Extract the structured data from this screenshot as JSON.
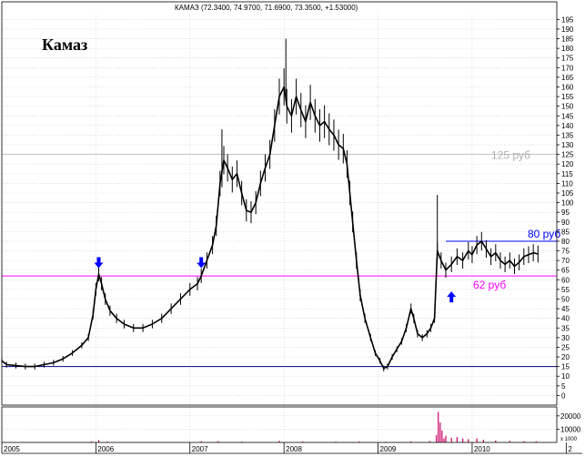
{
  "chart_data": {
    "type": "line",
    "title": "КАМАЗ (72.3400, 74.9700, 71.6900, 73.3500, +1.53000)",
    "label": "Камаз",
    "x_ticks": [
      "2005",
      "2006",
      "2007",
      "2008",
      "2009",
      "2010",
      "2"
    ],
    "y_ticks": [
      0,
      5,
      10,
      15,
      20,
      25,
      30,
      35,
      40,
      45,
      50,
      55,
      60,
      65,
      70,
      75,
      80,
      85,
      90,
      95,
      100,
      105,
      110,
      115,
      120,
      125,
      130,
      135,
      140,
      145,
      150,
      155,
      160,
      165,
      170,
      175,
      180,
      185,
      190,
      195
    ],
    "ylim": [
      -5,
      198
    ],
    "xlim": [
      2005.0,
      2010.9
    ],
    "volume_ticks": [
      "20000",
      "10000",
      "x 1000"
    ],
    "volume_ylim": [
      0,
      24000
    ],
    "grid": true,
    "colors": {
      "price": "#000000",
      "support_level": "#ff00ff",
      "resistance_level": "#0000ff",
      "level_125": "#b0b0b0",
      "baseline": "#000080",
      "arrow": "#0000ff",
      "volume": "#cc0066"
    },
    "horizontal_lines": [
      {
        "y": 125,
        "label": "125 руб",
        "color": "#b0b0b0"
      },
      {
        "y": 62,
        "label": "62 руб",
        "color": "#ff00ff"
      },
      {
        "y": 80,
        "label": "80 руб",
        "color": "#0000ff",
        "x_start": 2009.72
      },
      {
        "y": 15,
        "label": "",
        "color": "#000080"
      }
    ],
    "arrows": [
      {
        "x": 2006.03,
        "y": 67,
        "direction": "down"
      },
      {
        "x": 2007.12,
        "y": 67,
        "direction": "down"
      },
      {
        "x": 2009.78,
        "y": 53,
        "direction": "up"
      }
    ],
    "price_series": [
      [
        2005.0,
        18
      ],
      [
        2005.05,
        16
      ],
      [
        2005.15,
        15.5
      ],
      [
        2005.25,
        15
      ],
      [
        2005.35,
        15
      ],
      [
        2005.45,
        16
      ],
      [
        2005.55,
        17
      ],
      [
        2005.65,
        19
      ],
      [
        2005.75,
        22
      ],
      [
        2005.85,
        26
      ],
      [
        2005.92,
        30
      ],
      [
        2005.97,
        42
      ],
      [
        2006.0,
        55
      ],
      [
        2006.03,
        63
      ],
      [
        2006.06,
        58
      ],
      [
        2006.1,
        50
      ],
      [
        2006.15,
        44
      ],
      [
        2006.22,
        40
      ],
      [
        2006.3,
        37
      ],
      [
        2006.4,
        35
      ],
      [
        2006.5,
        35
      ],
      [
        2006.6,
        37
      ],
      [
        2006.7,
        40
      ],
      [
        2006.8,
        45
      ],
      [
        2006.9,
        50
      ],
      [
        2007.0,
        55
      ],
      [
        2007.08,
        58
      ],
      [
        2007.12,
        62
      ],
      [
        2007.18,
        70
      ],
      [
        2007.24,
        78
      ],
      [
        2007.28,
        88
      ],
      [
        2007.32,
        110
      ],
      [
        2007.36,
        122
      ],
      [
        2007.4,
        118
      ],
      [
        2007.45,
        112
      ],
      [
        2007.5,
        115
      ],
      [
        2007.55,
        105
      ],
      [
        2007.6,
        96
      ],
      [
        2007.65,
        95
      ],
      [
        2007.7,
        100
      ],
      [
        2007.75,
        110
      ],
      [
        2007.8,
        118
      ],
      [
        2007.85,
        125
      ],
      [
        2007.9,
        140
      ],
      [
        2007.95,
        155
      ],
      [
        2008.0,
        160
      ],
      [
        2008.03,
        150
      ],
      [
        2008.08,
        145
      ],
      [
        2008.13,
        155
      ],
      [
        2008.18,
        148
      ],
      [
        2008.23,
        142
      ],
      [
        2008.28,
        152
      ],
      [
        2008.33,
        145
      ],
      [
        2008.38,
        140
      ],
      [
        2008.43,
        142
      ],
      [
        2008.48,
        138
      ],
      [
        2008.53,
        135
      ],
      [
        2008.58,
        130
      ],
      [
        2008.63,
        128
      ],
      [
        2008.67,
        120
      ],
      [
        2008.7,
        105
      ],
      [
        2008.73,
        90
      ],
      [
        2008.77,
        70
      ],
      [
        2008.81,
        52
      ],
      [
        2008.86,
        40
      ],
      [
        2008.92,
        30
      ],
      [
        2008.97,
        22
      ],
      [
        2009.02,
        18
      ],
      [
        2009.06,
        14
      ],
      [
        2009.1,
        15
      ],
      [
        2009.15,
        20
      ],
      [
        2009.2,
        24
      ],
      [
        2009.25,
        28
      ],
      [
        2009.3,
        35
      ],
      [
        2009.35,
        45
      ],
      [
        2009.38,
        40
      ],
      [
        2009.42,
        32
      ],
      [
        2009.47,
        30
      ],
      [
        2009.52,
        32
      ],
      [
        2009.56,
        35
      ],
      [
        2009.6,
        40
      ],
      [
        2009.63,
        75
      ],
      [
        2009.67,
        70
      ],
      [
        2009.72,
        65
      ],
      [
        2009.78,
        68
      ],
      [
        2009.84,
        72
      ],
      [
        2009.9,
        70
      ],
      [
        2009.96,
        75
      ],
      [
        2010.0,
        73
      ],
      [
        2010.05,
        78
      ],
      [
        2010.1,
        80
      ],
      [
        2010.15,
        76
      ],
      [
        2010.2,
        72
      ],
      [
        2010.25,
        74
      ],
      [
        2010.3,
        70
      ],
      [
        2010.35,
        68
      ],
      [
        2010.4,
        70
      ],
      [
        2010.45,
        67
      ],
      [
        2010.5,
        69
      ],
      [
        2010.55,
        72
      ],
      [
        2010.6,
        73
      ],
      [
        2010.65,
        74
      ],
      [
        2010.7,
        73.35
      ]
    ],
    "volume_series": [
      [
        2005.95,
        800
      ],
      [
        2006.03,
        1800
      ],
      [
        2006.12,
        600
      ],
      [
        2007.12,
        900
      ],
      [
        2007.3,
        1000
      ],
      [
        2007.55,
        600
      ],
      [
        2007.95,
        1200
      ],
      [
        2008.2,
        700
      ],
      [
        2008.55,
        600
      ],
      [
        2008.8,
        700
      ],
      [
        2009.08,
        600
      ],
      [
        2009.35,
        800
      ],
      [
        2009.55,
        1000
      ],
      [
        2009.62,
        5500
      ],
      [
        2009.64,
        23000
      ],
      [
        2009.66,
        15000
      ],
      [
        2009.68,
        9000
      ],
      [
        2009.7,
        3000
      ],
      [
        2009.72,
        5000
      ],
      [
        2009.78,
        3500
      ],
      [
        2009.84,
        4000
      ],
      [
        2009.9,
        3000
      ],
      [
        2009.96,
        2500
      ],
      [
        2010.05,
        3000
      ],
      [
        2010.12,
        2000
      ],
      [
        2010.25,
        1500
      ],
      [
        2010.4,
        1200
      ],
      [
        2010.55,
        1000
      ],
      [
        2010.68,
        900
      ]
    ]
  }
}
